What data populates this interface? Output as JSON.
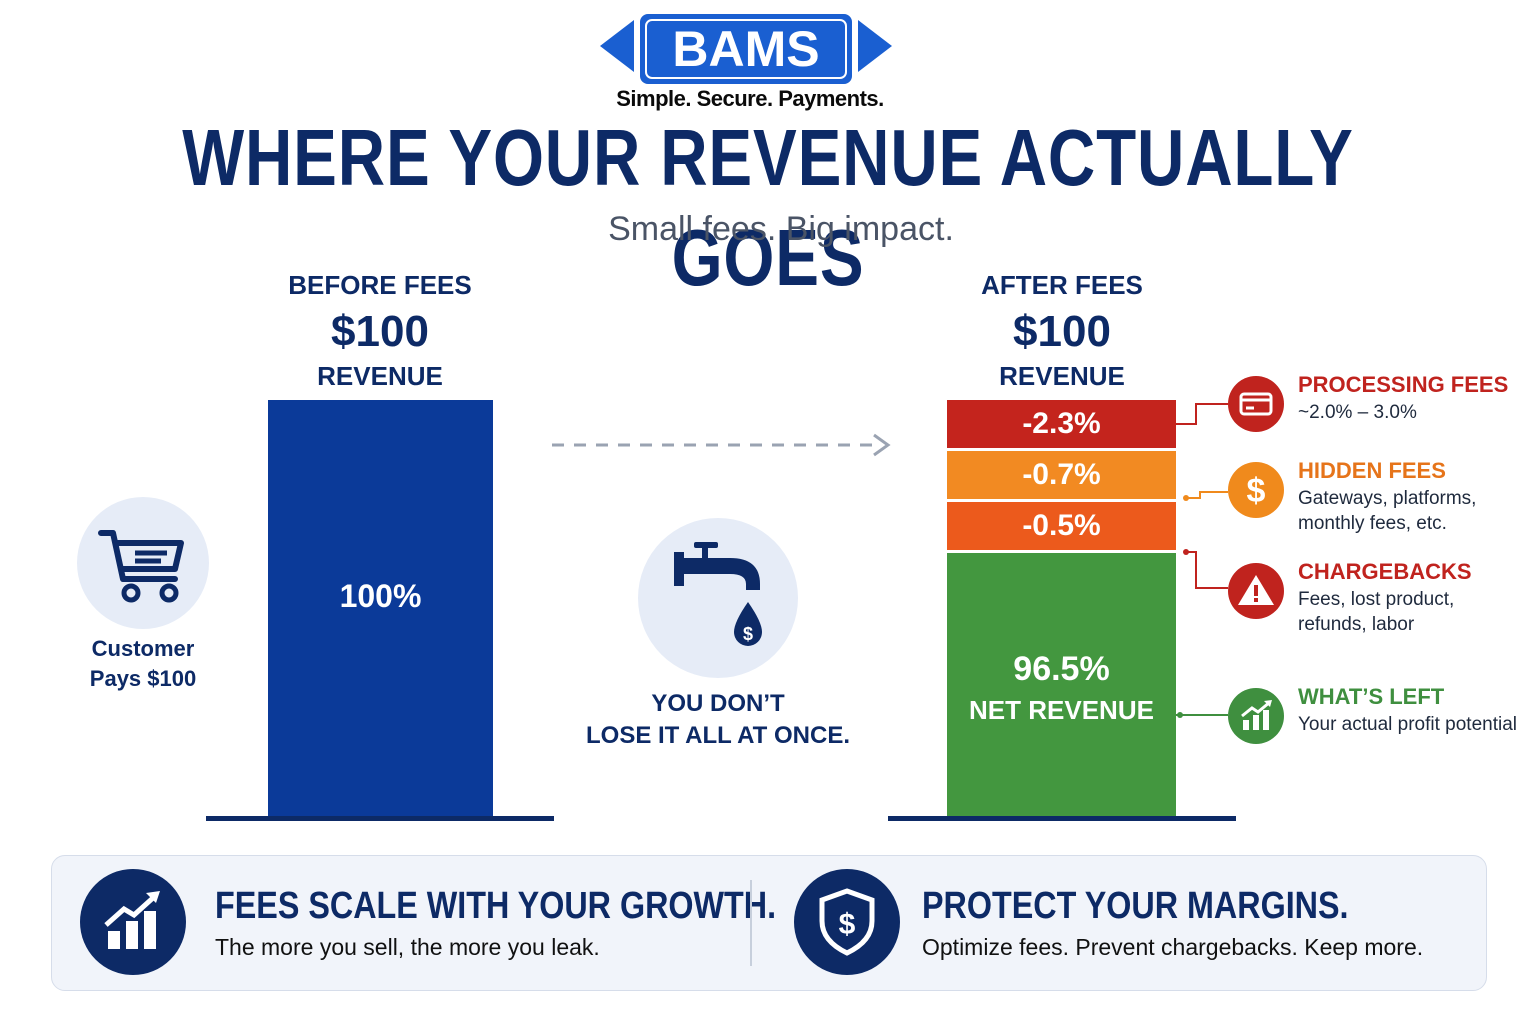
{
  "brand": {
    "logo_text": "BAMS",
    "tagline": "Simple. Secure. Payments.",
    "color": "#1a5fd1"
  },
  "title": "WHERE YOUR REVENUE ACTUALLY GOES",
  "subtitle": "Small fees. Big impact.",
  "before": {
    "heading": "BEFORE FEES",
    "amount": "$100",
    "caption": "REVENUE",
    "bar_label": "100%"
  },
  "after": {
    "heading": "AFTER FEES",
    "amount": "$100",
    "caption": "REVENUE",
    "net_pct": "96.5%",
    "net_label": "NET REVENUE"
  },
  "customer": {
    "text_line1": "Customer",
    "text_line2": "Pays $100",
    "icon": "cart-icon"
  },
  "leak": {
    "line1": "YOU DON’T",
    "line2": "LOSE IT ALL AT ONCE.",
    "icon": "faucet-icon"
  },
  "legend": [
    {
      "title": "PROCESSING FEES",
      "desc": "~2.0% – 3.0%",
      "color": "#c0231e",
      "icon": "credit-card-icon"
    },
    {
      "title": "HIDDEN FEES",
      "desc": "Gateways, platforms, monthly fees, etc.",
      "color": "#f08a1c",
      "icon": "dollar-icon"
    },
    {
      "title": "CHARGEBACKS",
      "desc": "Fees, lost product, refunds, labor",
      "color": "#c0231e",
      "icon": "warning-icon"
    },
    {
      "title": "WHAT’S LEFT",
      "desc": "Your actual profit potential",
      "color": "#3f8f3f",
      "icon": "growth-chart-icon"
    }
  ],
  "bottom": {
    "left_title": "FEES SCALE WITH YOUR GROWTH.",
    "left_desc": "The more you sell, the more you leak.",
    "right_title": "PROTECT YOUR MARGINS.",
    "right_desc": "Optimize fees. Prevent chargebacks. Keep more."
  },
  "chart_data": {
    "type": "bar",
    "categories": [
      "BEFORE FEES",
      "AFTER FEES"
    ],
    "ylim": [
      0,
      100
    ],
    "series": [
      {
        "category": "BEFORE FEES",
        "label": "100%",
        "value": 100,
        "color": "#0b3a99"
      },
      {
        "category": "AFTER FEES",
        "label": "96.5%",
        "value": 96.5,
        "color": "#43973f"
      },
      {
        "category": "AFTER FEES",
        "label": "-0.5%",
        "value": 0.5,
        "color": "#ec5a1c"
      },
      {
        "category": "AFTER FEES",
        "label": "-0.7%",
        "value": 0.7,
        "color": "#f28a22"
      },
      {
        "category": "AFTER FEES",
        "label": "-2.3%",
        "value": 2.3,
        "color": "#c4241d"
      }
    ]
  }
}
